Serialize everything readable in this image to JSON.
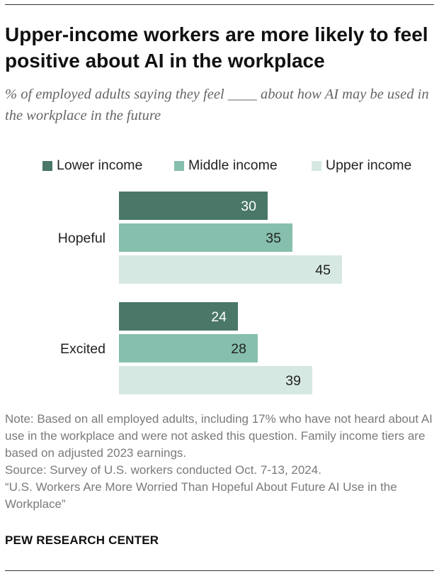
{
  "title": "Upper-income workers are more likely to feel positive about AI in the workplace",
  "subtitle": "% of employed adults saying they feel ____ about how AI may be used in the workplace in the future",
  "legend": [
    {
      "label": "Lower income",
      "color": "#4a7767"
    },
    {
      "label": "Middle income",
      "color": "#86bfad"
    },
    {
      "label": "Upper income",
      "color": "#d6e8e2"
    }
  ],
  "chart_data": {
    "type": "bar",
    "orientation": "horizontal",
    "categories": [
      "Hopeful",
      "Excited"
    ],
    "series": [
      {
        "name": "Lower income",
        "values": [
          30,
          24
        ],
        "color": "#4a7767",
        "label_color": "#ffffff"
      },
      {
        "name": "Middle income",
        "values": [
          35,
          28
        ],
        "color": "#86bfad",
        "label_color": "#222222"
      },
      {
        "name": "Upper income",
        "values": [
          45,
          39
        ],
        "color": "#d6e8e2",
        "label_color": "#222222"
      }
    ],
    "title": "Upper-income workers are more likely to feel positive about AI in the workplace",
    "xlabel": "",
    "ylabel": "",
    "xlim": [
      0,
      45
    ],
    "grid": false,
    "legend_position": "top"
  },
  "notes": {
    "note": "Note: Based on all employed adults, including 17% who have not heard about AI use in the workplace and were not asked this question. Family income tiers are based on adjusted 2023 earnings.",
    "source": "Source: Survey of U.S. workers conducted Oct. 7-13, 2024.",
    "report": "“U.S. Workers Are More Worried Than Hopeful About Future AI Use in the Workplace”"
  },
  "org": "PEW RESEARCH CENTER"
}
